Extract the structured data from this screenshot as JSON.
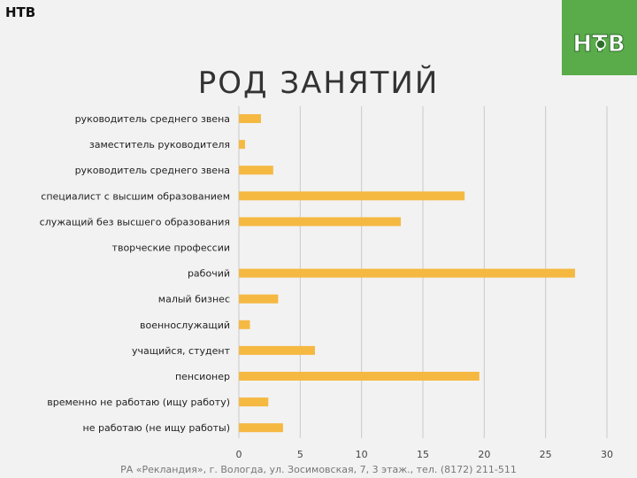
{
  "header": {
    "corner_label": "НТВ",
    "logo_text": "НТВ",
    "logo_color": "#5aab4a",
    "title": "РОД ЗАНЯТИЙ"
  },
  "chart_data": {
    "type": "bar",
    "orientation": "horizontal",
    "title": "",
    "xlabel": "",
    "ylabel": "",
    "xlim": [
      0,
      30
    ],
    "xticks": [
      0,
      5,
      10,
      15,
      20,
      25,
      30
    ],
    "grid": true,
    "bar_color": "#f5b942",
    "categories": [
      "руководитель среднего звена",
      "заместитель руководителя",
      "руководитель среднего звена",
      "специалист с высшим образованием",
      "служащий без высшего образования",
      "творческие профессии",
      "рабочий",
      "малый бизнес",
      "военнослужащий",
      "учащийся, студент",
      "пенсионер",
      "временно не работаю (ищу работу)",
      "не работаю (не ищу работы)"
    ],
    "values": [
      1.8,
      0.5,
      2.8,
      18.4,
      13.2,
      0,
      27.4,
      3.2,
      0.9,
      6.2,
      19.6,
      2.4,
      3.6
    ]
  },
  "footer": {
    "text": "РА «Рекландия», г. Вологда, ул. Зосимовская, 7, 3 этаж., тел. (8172) 211-511"
  }
}
